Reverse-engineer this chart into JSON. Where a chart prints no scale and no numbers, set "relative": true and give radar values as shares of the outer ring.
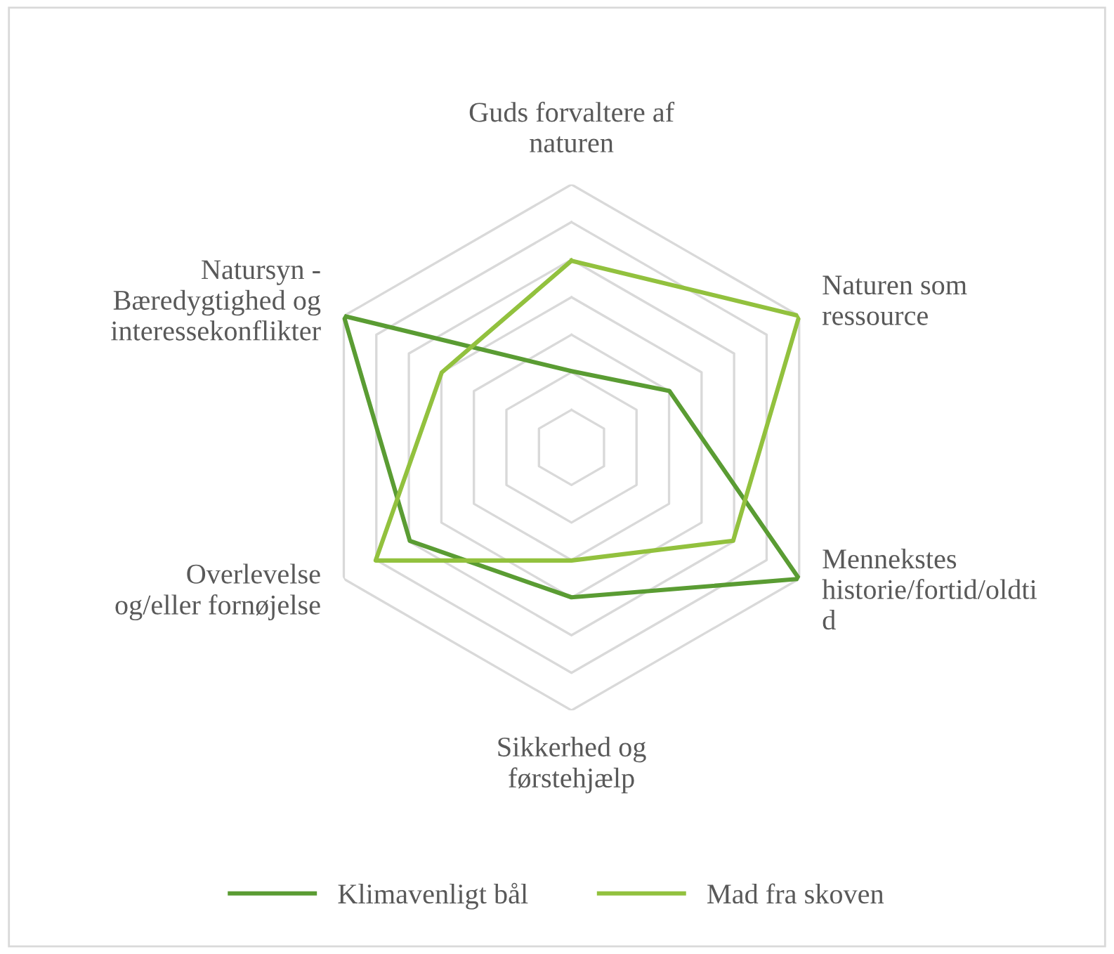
{
  "chart_data": {
    "type": "radar",
    "relative": true,
    "grid": true,
    "legend": "bottom",
    "line_style": "solid",
    "marker": "none",
    "categories": [
      "Guds forvaltere af\nnaturen",
      "Naturen som\nressource",
      "Mennekstes\nhistorie/fortid/oldti\nd",
      "Sikkerhed og\nførstehjælp",
      "Overlevelse\nog/eller fornøjelse",
      "Natursyn -\nBæredygtighed og\ninteressekonflikter"
    ],
    "series": [
      {
        "name": "Klimavenligt bål",
        "color": "#5a9c33",
        "values": [
          0.29,
          0.43,
          1.0,
          0.57,
          0.71,
          1.0
        ]
      },
      {
        "name": "Mad fra skoven",
        "color": "#92c13e",
        "values": [
          0.71,
          1.0,
          0.71,
          0.43,
          0.86,
          0.57
        ]
      }
    ]
  }
}
